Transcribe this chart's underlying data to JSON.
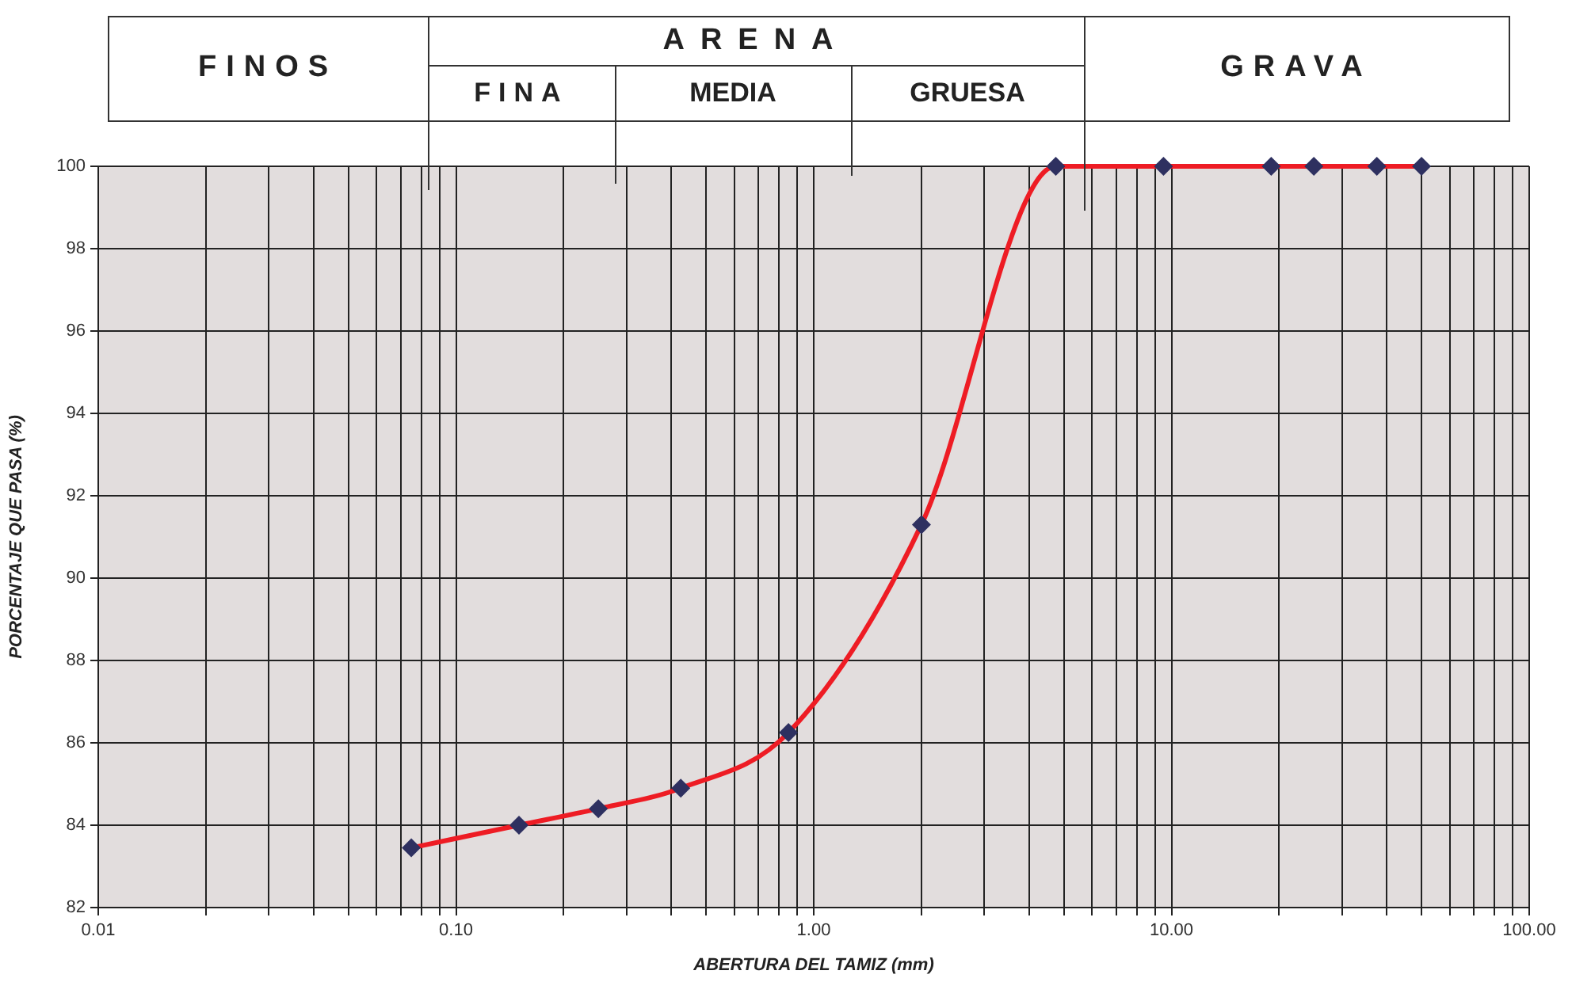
{
  "chart_data": {
    "type": "line",
    "xlabel": "ABERTURA DEL TAMIZ (mm)",
    "ylabel": "PORCENTAJE QUE PASA (%)",
    "annotations": [
      "FINOS",
      "ARENA",
      "FINA",
      "MEDIA",
      "GRUESA",
      "GRAVA"
    ],
    "log": "x",
    "grid": true,
    "legend": false,
    "marker": "diamond",
    "line_style": "solid",
    "xlim": [
      0.01,
      100
    ],
    "ylim": [
      82,
      100
    ],
    "xticks": [
      {
        "value": 0.01,
        "label": "0.01"
      },
      {
        "value": 0.02,
        "label": null
      },
      {
        "value": 0.03,
        "label": null
      },
      {
        "value": 0.04,
        "label": null
      },
      {
        "value": 0.05,
        "label": null
      },
      {
        "value": 0.06,
        "label": null
      },
      {
        "value": 0.07,
        "label": null
      },
      {
        "value": 0.08,
        "label": null
      },
      {
        "value": 0.09,
        "label": null
      },
      {
        "value": 0.1,
        "label": "0.10"
      },
      {
        "value": 0.2,
        "label": null
      },
      {
        "value": 0.3,
        "label": null
      },
      {
        "value": 0.4,
        "label": null
      },
      {
        "value": 0.5,
        "label": null
      },
      {
        "value": 0.6,
        "label": null
      },
      {
        "value": 0.7,
        "label": null
      },
      {
        "value": 0.8,
        "label": null
      },
      {
        "value": 0.9,
        "label": null
      },
      {
        "value": 1,
        "label": "1.00"
      },
      {
        "value": 2,
        "label": null
      },
      {
        "value": 3,
        "label": null
      },
      {
        "value": 4,
        "label": null
      },
      {
        "value": 5,
        "label": null
      },
      {
        "value": 6,
        "label": null
      },
      {
        "value": 7,
        "label": null
      },
      {
        "value": 8,
        "label": null
      },
      {
        "value": 9,
        "label": null
      },
      {
        "value": 10,
        "label": "10.00"
      },
      {
        "value": 20,
        "label": null
      },
      {
        "value": 30,
        "label": null
      },
      {
        "value": 40,
        "label": null
      },
      {
        "value": 50,
        "label": null
      },
      {
        "value": 60,
        "label": null
      },
      {
        "value": 70,
        "label": null
      },
      {
        "value": 80,
        "label": null
      },
      {
        "value": 90,
        "label": null
      },
      {
        "value": 100,
        "label": "100.00"
      }
    ],
    "yticks": [
      82,
      84,
      86,
      88,
      90,
      92,
      94,
      96,
      98,
      100
    ],
    "x": [
      0.075,
      0.15,
      0.25,
      0.425,
      0.85,
      2,
      4.75,
      9.5,
      19,
      25,
      37.5,
      50
    ],
    "series": [
      {
        "color": "#ee1c24",
        "values": [
          83.45,
          84.0,
          84.4,
          84.9,
          86.25,
          91.3,
          100,
          100,
          100,
          100,
          100,
          100
        ]
      }
    ]
  }
}
